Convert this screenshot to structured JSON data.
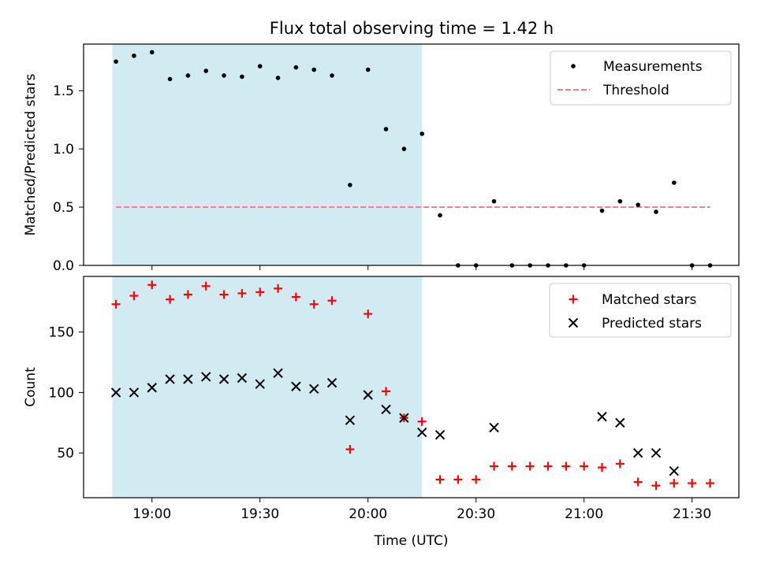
{
  "chart_data": {
    "type": "scatter",
    "title": "Flux total observing time = 1.42 h",
    "xlabel": "Time (UTC)",
    "x_tick_labels": [
      "19:00",
      "19:30",
      "20:00",
      "20:30",
      "21:00",
      "21:30"
    ],
    "x_tick_values": [
      "19:00",
      "19:30",
      "20:00",
      "20:30",
      "21:00",
      "21:30"
    ],
    "xlim": [
      "18:41",
      "21:43"
    ],
    "highlight_span": {
      "start": "18:49",
      "end": "20:15",
      "color": "#add8e6"
    },
    "panels": [
      {
        "ylabel": "Matched/Predicted stars",
        "ylim": [
          0,
          1.9
        ],
        "y_ticks": [
          0.0,
          0.5,
          1.0,
          1.5
        ],
        "y_tick_labels": [
          "0.0",
          "0.5",
          "1.0",
          "1.5"
        ],
        "legend_position": "upper right",
        "series": [
          {
            "name": "Measurements",
            "marker": "dot",
            "color": "#000000",
            "points": [
              [
                "18:50",
                1.75
              ],
              [
                "18:55",
                1.8
              ],
              [
                "19:00",
                1.83
              ],
              [
                "19:05",
                1.6
              ],
              [
                "19:10",
                1.63
              ],
              [
                "19:15",
                1.67
              ],
              [
                "19:20",
                1.63
              ],
              [
                "19:25",
                1.62
              ],
              [
                "19:30",
                1.71
              ],
              [
                "19:35",
                1.61
              ],
              [
                "19:40",
                1.7
              ],
              [
                "19:45",
                1.68
              ],
              [
                "19:50",
                1.63
              ],
              [
                "19:55",
                0.69
              ],
              [
                "20:00",
                1.68
              ],
              [
                "20:05",
                1.17
              ],
              [
                "20:10",
                1.0
              ],
              [
                "20:15",
                1.13
              ],
              [
                "20:20",
                0.43
              ],
              [
                "20:25",
                0.0
              ],
              [
                "20:30",
                0.0
              ],
              [
                "20:35",
                0.55
              ],
              [
                "20:40",
                0.0
              ],
              [
                "20:45",
                0.0
              ],
              [
                "20:50",
                0.0
              ],
              [
                "20:55",
                0.0
              ],
              [
                "21:00",
                0.0
              ],
              [
                "21:05",
                0.47
              ],
              [
                "21:10",
                0.55
              ],
              [
                "21:15",
                0.52
              ],
              [
                "21:20",
                0.46
              ],
              [
                "21:25",
                0.71
              ],
              [
                "21:30",
                0.0
              ],
              [
                "21:35",
                0.0
              ]
            ]
          },
          {
            "name": "Threshold",
            "line": "dashed",
            "color": "#ff7f7f",
            "y": 0.5,
            "x_range": [
              "18:50",
              "21:35"
            ]
          }
        ]
      },
      {
        "ylabel": "Count",
        "ylim": [
          13,
          196
        ],
        "y_ticks": [
          50,
          100,
          150
        ],
        "y_tick_labels": [
          "50",
          "100",
          "150"
        ],
        "legend_position": "upper right",
        "series": [
          {
            "name": "Matched stars",
            "marker": "plus",
            "color": "#ff0000",
            "points": [
              [
                "18:50",
                173
              ],
              [
                "18:55",
                180
              ],
              [
                "19:00",
                189
              ],
              [
                "19:05",
                177
              ],
              [
                "19:10",
                181
              ],
              [
                "19:15",
                188
              ],
              [
                "19:20",
                181
              ],
              [
                "19:25",
                182
              ],
              [
                "19:30",
                183
              ],
              [
                "19:35",
                186
              ],
              [
                "19:40",
                179
              ],
              [
                "19:45",
                173
              ],
              [
                "19:50",
                176
              ],
              [
                "19:55",
                53
              ],
              [
                "20:00",
                165
              ],
              [
                "20:05",
                101
              ],
              [
                "20:10",
                79
              ],
              [
                "20:15",
                76
              ],
              [
                "20:20",
                28
              ],
              [
                "20:25",
                28
              ],
              [
                "20:30",
                28
              ],
              [
                "20:35",
                39
              ],
              [
                "20:40",
                39
              ],
              [
                "20:45",
                39
              ],
              [
                "20:50",
                39
              ],
              [
                "20:55",
                39
              ],
              [
                "21:00",
                39
              ],
              [
                "21:05",
                38
              ],
              [
                "21:10",
                41
              ],
              [
                "21:15",
                26
              ],
              [
                "21:20",
                23
              ],
              [
                "21:25",
                25
              ],
              [
                "21:30",
                25
              ],
              [
                "21:35",
                25
              ]
            ]
          },
          {
            "name": "Predicted stars",
            "marker": "x",
            "color": "#000000",
            "points": [
              [
                "18:50",
                100
              ],
              [
                "18:55",
                100
              ],
              [
                "19:00",
                104
              ],
              [
                "19:05",
                111
              ],
              [
                "19:10",
                111
              ],
              [
                "19:15",
                113
              ],
              [
                "19:20",
                111
              ],
              [
                "19:25",
                112
              ],
              [
                "19:30",
                107
              ],
              [
                "19:35",
                116
              ],
              [
                "19:40",
                105
              ],
              [
                "19:45",
                103
              ],
              [
                "19:50",
                108
              ],
              [
                "19:55",
                77
              ],
              [
                "20:00",
                98
              ],
              [
                "20:05",
                86
              ],
              [
                "20:10",
                79
              ],
              [
                "20:15",
                67
              ],
              [
                "20:20",
                65
              ],
              [
                "20:35",
                71
              ],
              [
                "21:05",
                80
              ],
              [
                "21:10",
                75
              ],
              [
                "21:15",
                50
              ],
              [
                "21:20",
                50
              ],
              [
                "21:25",
                35
              ]
            ]
          }
        ]
      }
    ]
  }
}
